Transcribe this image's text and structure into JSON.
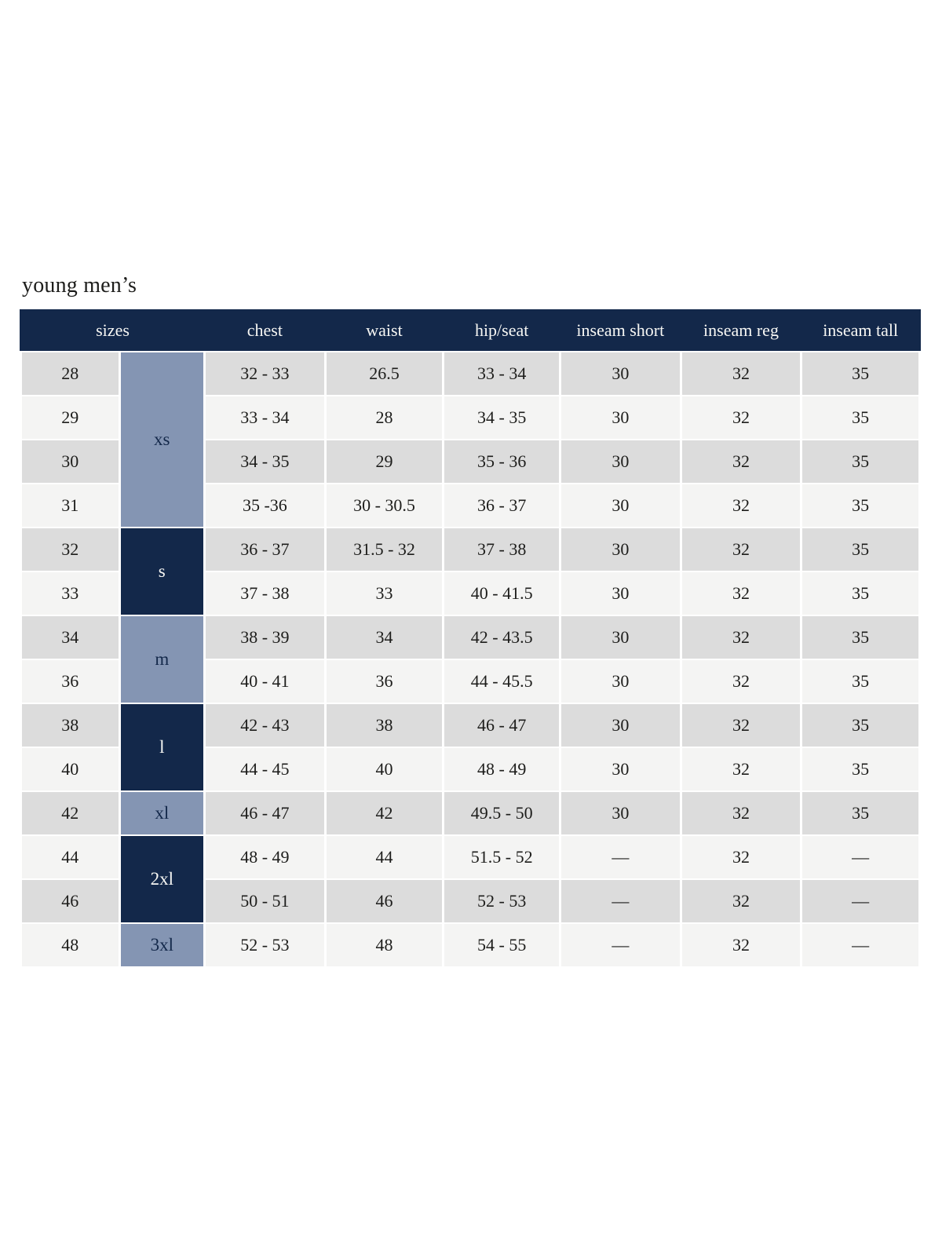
{
  "page": {
    "title": "young men’s"
  },
  "table": {
    "colors": {
      "header_bg": "#13284a",
      "header_text": "#f7f7f4",
      "navy_cell_bg": "#13284a",
      "navy_cell_text": "#f7f7f4",
      "slate_cell_bg": "#8495b3",
      "slate_cell_text": "#13284a",
      "row_even_bg": "#dcdcdc",
      "row_odd_bg": "#f4f4f3",
      "cell_text": "#1d1d1b"
    },
    "headers": [
      "sizes",
      "chest",
      "waist",
      "hip/seat",
      "inseam short",
      "inseam reg",
      "inseam tall"
    ],
    "size_groups": [
      {
        "label": "xs",
        "rows": 4,
        "tone": "slate"
      },
      {
        "label": "s",
        "rows": 2,
        "tone": "navy"
      },
      {
        "label": "m",
        "rows": 2,
        "tone": "slate"
      },
      {
        "label": "l",
        "rows": 2,
        "tone": "navy"
      },
      {
        "label": "xl",
        "rows": 1,
        "tone": "slate"
      },
      {
        "label": "2xl",
        "rows": 2,
        "tone": "navy"
      },
      {
        "label": "3xl",
        "rows": 1,
        "tone": "slate"
      }
    ],
    "rows": [
      {
        "size": "28",
        "chest": "32 - 33",
        "waist": "26.5",
        "hip_seat": "33 - 34",
        "inseam_short": "30",
        "inseam_reg": "32",
        "inseam_tall": "35"
      },
      {
        "size": "29",
        "chest": "33 - 34",
        "waist": "28",
        "hip_seat": "34 - 35",
        "inseam_short": "30",
        "inseam_reg": "32",
        "inseam_tall": "35"
      },
      {
        "size": "30",
        "chest": "34 - 35",
        "waist": "29",
        "hip_seat": "35 - 36",
        "inseam_short": "30",
        "inseam_reg": "32",
        "inseam_tall": "35"
      },
      {
        "size": "31",
        "chest": "35 -36",
        "waist": "30 - 30.5",
        "hip_seat": "36 - 37",
        "inseam_short": "30",
        "inseam_reg": "32",
        "inseam_tall": "35"
      },
      {
        "size": "32",
        "chest": "36 - 37",
        "waist": "31.5 - 32",
        "hip_seat": "37 - 38",
        "inseam_short": "30",
        "inseam_reg": "32",
        "inseam_tall": "35"
      },
      {
        "size": "33",
        "chest": "37 - 38",
        "waist": "33",
        "hip_seat": "40 - 41.5",
        "inseam_short": "30",
        "inseam_reg": "32",
        "inseam_tall": "35"
      },
      {
        "size": "34",
        "chest": "38 - 39",
        "waist": "34",
        "hip_seat": "42 - 43.5",
        "inseam_short": "30",
        "inseam_reg": "32",
        "inseam_tall": "35"
      },
      {
        "size": "36",
        "chest": "40 - 41",
        "waist": "36",
        "hip_seat": "44 - 45.5",
        "inseam_short": "30",
        "inseam_reg": "32",
        "inseam_tall": "35"
      },
      {
        "size": "38",
        "chest": "42 - 43",
        "waist": "38",
        "hip_seat": "46 - 47",
        "inseam_short": "30",
        "inseam_reg": "32",
        "inseam_tall": "35"
      },
      {
        "size": "40",
        "chest": "44 - 45",
        "waist": "40",
        "hip_seat": "48 - 49",
        "inseam_short": "30",
        "inseam_reg": "32",
        "inseam_tall": "35"
      },
      {
        "size": "42",
        "chest": "46 - 47",
        "waist": "42",
        "hip_seat": "49.5 - 50",
        "inseam_short": "30",
        "inseam_reg": "32",
        "inseam_tall": "35"
      },
      {
        "size": "44",
        "chest": "48 - 49",
        "waist": "44",
        "hip_seat": "51.5 - 52",
        "inseam_short": "—",
        "inseam_reg": "32",
        "inseam_tall": "—"
      },
      {
        "size": "46",
        "chest": "50 - 51",
        "waist": "46",
        "hip_seat": "52 - 53",
        "inseam_short": "—",
        "inseam_reg": "32",
        "inseam_tall": "—"
      },
      {
        "size": "48",
        "chest": "52 - 53",
        "waist": "48",
        "hip_seat": "54 - 55",
        "inseam_short": "—",
        "inseam_reg": "32",
        "inseam_tall": "—"
      }
    ]
  }
}
